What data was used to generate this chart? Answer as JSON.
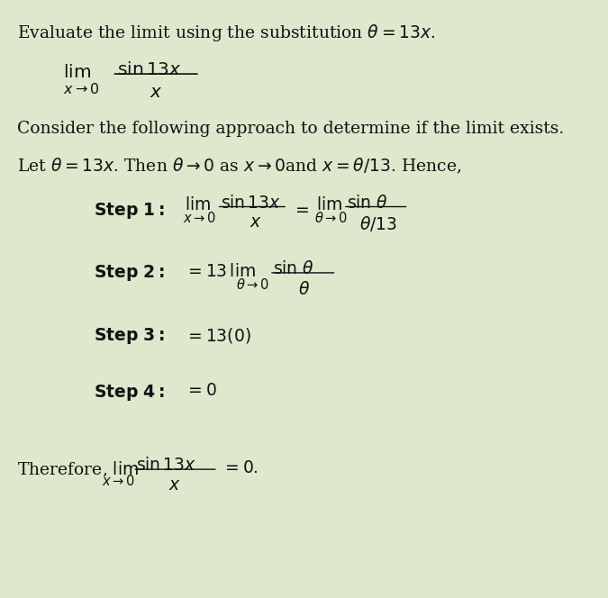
{
  "background_color": "#e8e8d8",
  "text_color": "#1a1a1a",
  "figsize": [
    6.75,
    6.64
  ],
  "dpi": 100,
  "title_line": "Evaluate the limit using the substitution $\\theta = 13x$.",
  "consider_line": "Consider the following approach to determine if the limit exists.",
  "let_line": "Let $\\theta = 13x$. Then $\\theta \\rightarrow 0$ as $x \\rightarrow 0$and $x = \\theta/13$. Hence,",
  "step1_label": "\\textbf{Step 1:}",
  "step2_label": "\\textbf{Step 2:}",
  "step3_label": "\\textbf{Step 3:}",
  "step4_label": "\\textbf{Step 4:}",
  "font_size_main": 13,
  "font_size_math": 13
}
